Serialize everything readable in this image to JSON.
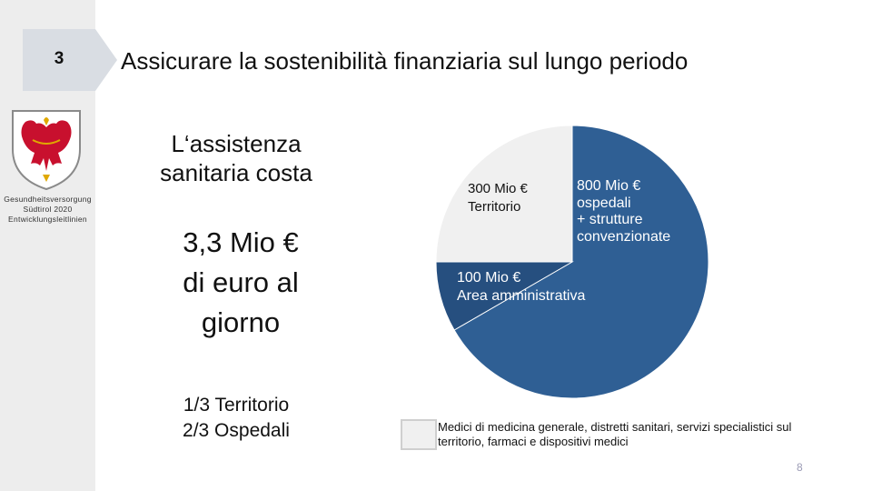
{
  "section": {
    "number": "3"
  },
  "title": "Assicurare la sostenibilità finanziaria sul lungo periodo",
  "sidebar": {
    "org_lines": [
      "Gesundheitsversorgung",
      "Südtirol 2020",
      "Entwicklungsleitlinien"
    ],
    "crest_icon": "coat-of-arms-eagle-icon"
  },
  "main": {
    "heading_lines": [
      "L‘assistenza",
      "sanitaria costa"
    ],
    "daily_cost_lines": [
      "3,3 Mio €",
      "di euro al",
      "giorno"
    ],
    "split_lines": [
      "1/3 Territorio",
      "2/3 Ospedali"
    ]
  },
  "chart_data": {
    "type": "pie",
    "slices": [
      {
        "label": "300 Mio € Territorio",
        "label_lines": [
          "300 Mio €",
          "Territorio"
        ],
        "value": 300,
        "color": "#f0f0f0"
      },
      {
        "label": "800 Mio € ospedali + strutture convenzionate",
        "label_lines": [
          "800 Mio €",
          "ospedali",
          "+ strutture",
          "convenzionate"
        ],
        "value": 800,
        "color": "#2f5f94"
      },
      {
        "label": "100 Mio € Area amministrativa",
        "label_lines": [
          "100 Mio €",
          "Area amministrativa"
        ],
        "value": 100,
        "color": "#264f7f"
      }
    ],
    "start": "12 o'clock, clockwise from the Territorio slice's right edge",
    "legend": {
      "swatch_color": "#f0f0f0",
      "text": "Medici di medicina generale, distretti sanitari, servizi specialistici sul territorio, farmaci e dispositivi medici",
      "placement": "bottom"
    }
  },
  "page_number": "8",
  "colors": {
    "sidebar_bg": "#ededed",
    "number_box": "#d9dde3",
    "territorio": "#f0f0f0",
    "ospedali": "#2f5f94",
    "amministrativa": "#264f7f",
    "page_number": "#9b9bb5"
  }
}
